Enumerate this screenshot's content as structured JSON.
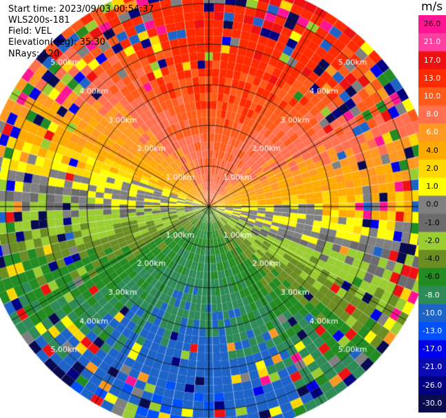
{
  "header": {
    "start_time": "Start time: 2023/09/03 00:54:37",
    "instrument": "WLS200s-181",
    "field": "Field: VEL",
    "elevation": "Elevation(deg): 35.30",
    "nrays": "NRays: 120"
  },
  "chart_data": {
    "type": "ppi",
    "field": "VEL",
    "n_rays": 120,
    "range_rings_km": [
      1,
      2,
      3,
      4,
      5
    ],
    "ring_labels": [
      "1.00km",
      "2.00km",
      "3.00km",
      "4.00km",
      "5.00km"
    ],
    "max_range_km": 5.6,
    "velocity_pattern": {
      "approach_center_deg": 10,
      "peak_velocity_ms": 12,
      "description": "positive velocities toward north, negative toward south"
    }
  },
  "colorbar": {
    "unit": "m/s",
    "ticks": [
      "26.0",
      "21.0",
      "17.0",
      "13.0",
      "10.0",
      "8.0",
      "6.0",
      "4.0",
      "2.0",
      "1.0",
      "0.0",
      "-1.0",
      "-2.0",
      "-4.0",
      "-6.0",
      "-8.0",
      "-10.0",
      "-13.0",
      "-17.0",
      "-21.0",
      "-26.0",
      "-30.0"
    ],
    "colors": [
      "#ff1493",
      "#ff3fa0",
      "#ee1111",
      "#ff2a00",
      "#ff5a1a",
      "#ff7050",
      "#ff9922",
      "#ffaa00",
      "#ffd700",
      "#ffff00",
      "#808080",
      "#6b6b6b",
      "#9acd32",
      "#6b8e23",
      "#228b22",
      "#2e8b57",
      "#1e64c8",
      "#0050ff",
      "#0000ee",
      "#0b0bb4",
      "#000080",
      "#0a0a50"
    ]
  }
}
